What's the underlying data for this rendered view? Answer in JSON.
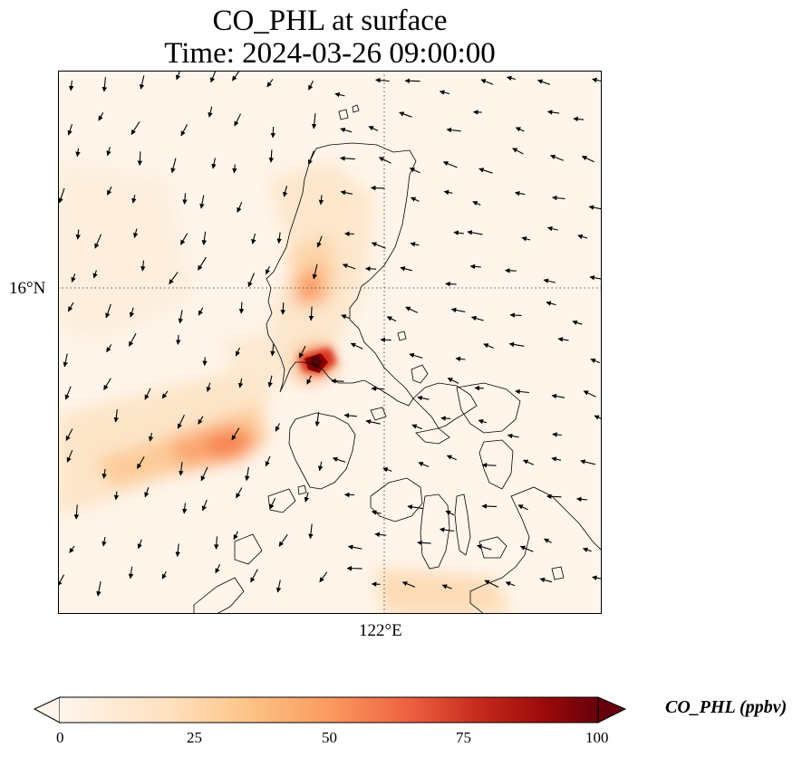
{
  "title": {
    "line1": "CO_PHL at surface",
    "line2": "Time: 2024-03-26 09:00:00"
  },
  "axes": {
    "lat_label": "16°N",
    "lon_label": "122°E",
    "gridlines": "dotted"
  },
  "colorbar": {
    "label": "CO_PHL (ppbv)",
    "ticks": [
      "0",
      "25",
      "50",
      "75",
      "100"
    ],
    "min": 0,
    "max": 100,
    "colormap": "Oranges-to-darkred",
    "extend": "both",
    "colors": [
      "#fff5eb",
      "#fdd49e",
      "#fdae6b",
      "#f16913",
      "#d94801",
      "#a50f15",
      "#67000d"
    ]
  },
  "map": {
    "background": "#fff5eb",
    "features": [
      "coastlines",
      "wind-vectors",
      "CO concentration field"
    ]
  }
}
